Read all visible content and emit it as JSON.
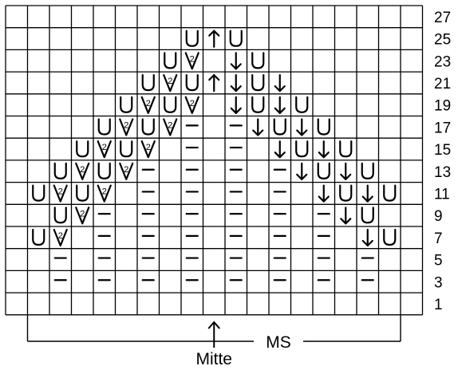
{
  "chart": {
    "columns": 19,
    "row_count": 14,
    "row_labels": [
      "27",
      "25",
      "23",
      "21",
      "19",
      "17",
      "15",
      "13",
      "11",
      "9",
      "7",
      "5",
      "3",
      "1"
    ],
    "grid": [
      "...................",
      "........UAU........",
      ".......UV.DU.......",
      "......UVUADUD......",
      ".....UVUV.DUDU.....",
      "....UVUV-.-DUDU....",
      "...UVUV.-.-.DUDU...",
      "..UVUV-.-.-.-DUDU..",
      ".UVUV.-.-.-.-.DUDU.",
      "..UV-.-.-.-.-.-DU..",
      ".UV.-.-.-.-.-.-.DU.",
      "..-.-.-.-.-.-.-.-..",
      "..-.-.-.-.-.-.-.-..",
      "..................."
    ],
    "legend": {
      "U": "U",
      "V": "2-in-1 V",
      "-": "–",
      "A": "↑",
      "D": "↓",
      ".": "empty"
    },
    "center_arrow": "↑",
    "center_label": "Mitte",
    "ms_label": "MS",
    "line_color": "#000000",
    "background": "#ffffff"
  }
}
